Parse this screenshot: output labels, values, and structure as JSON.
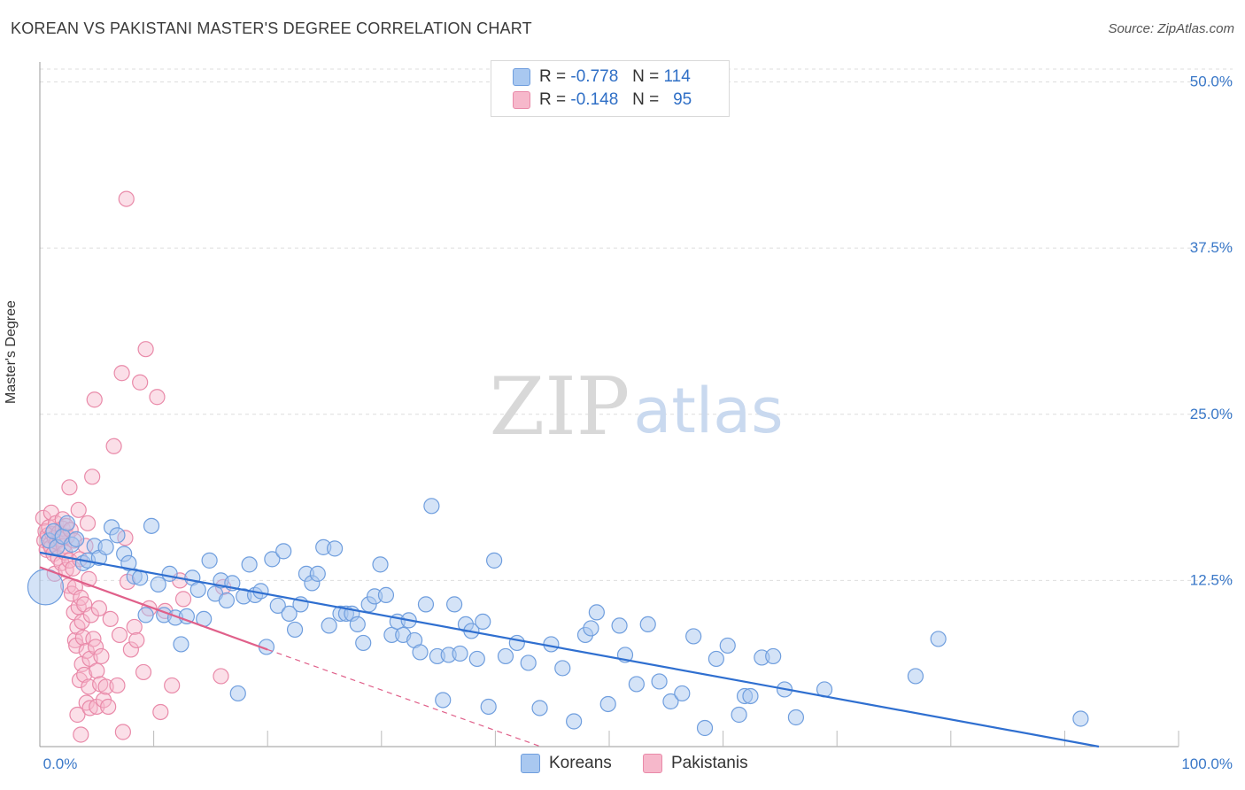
{
  "title": "KOREAN VS PAKISTANI MASTER'S DEGREE CORRELATION CHART",
  "source": "Source: ZipAtlas.com",
  "watermark": {
    "zip": "ZIP",
    "atlas": "atlas"
  },
  "colors": {
    "koreans_fill": "#a9c8f0",
    "koreans_stroke": "#6f9ede",
    "koreans_line": "#2f6fd0",
    "pakistanis_fill": "#f6b8cb",
    "pakistanis_stroke": "#e98aa9",
    "pakistanis_line": "#e0608a",
    "axis_label": "#3a78c8"
  },
  "legend": {
    "rows": [
      {
        "r_label": "R =",
        "r_value": "-0.778",
        "n_label": "N =",
        "n_value": "114"
      },
      {
        "r_label": "R =",
        "r_value": "-0.148",
        "n_label": "N =",
        "n_value": "95"
      }
    ]
  },
  "bottom_legend": {
    "koreans": "Koreans",
    "pakistanis": "Pakistanis"
  },
  "chart_data": {
    "type": "scatter",
    "title": "KOREAN VS PAKISTANI MASTER'S DEGREE CORRELATION CHART",
    "xlabel": "",
    "ylabel": "Master's Degree",
    "xlim": [
      0,
      100
    ],
    "ylim": [
      0,
      51.5
    ],
    "x_tick_labels": [
      "0.0%",
      "100.0%"
    ],
    "y_ticks": [
      12.5,
      25.0,
      37.5,
      50.0
    ],
    "y_tick_labels": [
      "12.5%",
      "25.0%",
      "37.5%",
      "50.0%"
    ],
    "grid": true,
    "legend_position": "top-center",
    "series": [
      {
        "name": "Koreans",
        "R": -0.778,
        "N": 114,
        "trendline": {
          "x": [
            0,
            93
          ],
          "y": [
            14.6,
            0
          ]
        },
        "points": [
          [
            0.5,
            12.0
          ],
          [
            0.8,
            15.5
          ],
          [
            1.2,
            16.2
          ],
          [
            1.5,
            15.0
          ],
          [
            2.0,
            15.8
          ],
          [
            2.4,
            16.8
          ],
          [
            2.8,
            15.2
          ],
          [
            3.2,
            15.6
          ],
          [
            3.8,
            13.8
          ],
          [
            4.2,
            14.0
          ],
          [
            4.8,
            15.1
          ],
          [
            5.2,
            14.2
          ],
          [
            5.8,
            15.0
          ],
          [
            6.3,
            16.5
          ],
          [
            6.8,
            15.9
          ],
          [
            7.4,
            14.5
          ],
          [
            7.8,
            13.8
          ],
          [
            8.3,
            12.8
          ],
          [
            8.8,
            12.7
          ],
          [
            9.3,
            9.9
          ],
          [
            9.8,
            16.6
          ],
          [
            10.4,
            12.2
          ],
          [
            10.9,
            9.9
          ],
          [
            11.4,
            13.0
          ],
          [
            11.9,
            9.7
          ],
          [
            12.4,
            7.7
          ],
          [
            12.9,
            9.8
          ],
          [
            13.4,
            12.7
          ],
          [
            13.9,
            11.8
          ],
          [
            14.4,
            9.6
          ],
          [
            14.9,
            14.0
          ],
          [
            15.4,
            11.5
          ],
          [
            15.9,
            12.5
          ],
          [
            16.4,
            11.0
          ],
          [
            16.9,
            12.3
          ],
          [
            17.4,
            4.0
          ],
          [
            17.9,
            11.3
          ],
          [
            18.4,
            13.7
          ],
          [
            18.9,
            11.4
          ],
          [
            19.4,
            11.7
          ],
          [
            19.9,
            7.5
          ],
          [
            20.4,
            14.1
          ],
          [
            20.9,
            10.6
          ],
          [
            21.4,
            14.7
          ],
          [
            21.9,
            10.0
          ],
          [
            22.4,
            8.8
          ],
          [
            22.9,
            10.7
          ],
          [
            23.4,
            13.0
          ],
          [
            23.9,
            12.3
          ],
          [
            24.4,
            13.0
          ],
          [
            24.9,
            15.0
          ],
          [
            25.4,
            9.1
          ],
          [
            25.9,
            14.9
          ],
          [
            26.4,
            10.0
          ],
          [
            26.9,
            10.0
          ],
          [
            27.4,
            10.0
          ],
          [
            27.9,
            9.2
          ],
          [
            28.4,
            7.8
          ],
          [
            28.9,
            10.7
          ],
          [
            29.4,
            11.3
          ],
          [
            29.9,
            13.7
          ],
          [
            30.4,
            11.4
          ],
          [
            30.9,
            8.4
          ],
          [
            31.4,
            9.4
          ],
          [
            31.9,
            8.4
          ],
          [
            32.4,
            9.5
          ],
          [
            32.9,
            8.0
          ],
          [
            33.4,
            7.1
          ],
          [
            33.9,
            10.7
          ],
          [
            34.4,
            18.1
          ],
          [
            34.9,
            6.8
          ],
          [
            35.4,
            3.5
          ],
          [
            35.9,
            6.9
          ],
          [
            36.4,
            10.7
          ],
          [
            36.9,
            7.0
          ],
          [
            37.4,
            9.2
          ],
          [
            37.9,
            8.7
          ],
          [
            38.4,
            6.6
          ],
          [
            38.9,
            9.4
          ],
          [
            39.4,
            3.0
          ],
          [
            39.9,
            14.0
          ],
          [
            40.9,
            6.8
          ],
          [
            41.9,
            7.8
          ],
          [
            42.9,
            6.3
          ],
          [
            43.9,
            2.9
          ],
          [
            44.9,
            7.7
          ],
          [
            45.9,
            5.9
          ],
          [
            46.9,
            1.9
          ],
          [
            47.9,
            8.4
          ],
          [
            48.4,
            8.9
          ],
          [
            48.9,
            10.1
          ],
          [
            49.9,
            3.2
          ],
          [
            50.9,
            9.1
          ],
          [
            51.4,
            6.9
          ],
          [
            52.4,
            4.7
          ],
          [
            53.4,
            9.2
          ],
          [
            54.4,
            4.9
          ],
          [
            55.4,
            3.4
          ],
          [
            56.4,
            4.0
          ],
          [
            57.4,
            8.3
          ],
          [
            58.4,
            1.4
          ],
          [
            59.4,
            6.6
          ],
          [
            60.4,
            7.6
          ],
          [
            61.4,
            2.4
          ],
          [
            61.9,
            3.8
          ],
          [
            62.4,
            3.8
          ],
          [
            63.4,
            6.7
          ],
          [
            64.4,
            6.8
          ],
          [
            65.4,
            4.3
          ],
          [
            66.4,
            2.2
          ],
          [
            68.9,
            4.3
          ],
          [
            76.9,
            5.3
          ],
          [
            78.9,
            8.1
          ],
          [
            91.4,
            2.1
          ]
        ]
      },
      {
        "name": "Pakistanis",
        "R": -0.148,
        "N": 95,
        "trendline_solid": {
          "x": [
            0,
            20
          ],
          "y": [
            13.5,
            7.3
          ]
        },
        "trendline_dashed": {
          "x": [
            20,
            44
          ],
          "y": [
            7.3,
            0
          ]
        },
        "points": [
          [
            0.3,
            17.2
          ],
          [
            0.4,
            15.5
          ],
          [
            0.5,
            16.2
          ],
          [
            0.6,
            14.8
          ],
          [
            0.7,
            15.9
          ],
          [
            0.8,
            16.5
          ],
          [
            0.9,
            15.2
          ],
          [
            1.0,
            17.6
          ],
          [
            1.0,
            15.0
          ],
          [
            1.1,
            16.0
          ],
          [
            1.2,
            14.5
          ],
          [
            1.3,
            15.7
          ],
          [
            1.3,
            13.0
          ],
          [
            1.4,
            16.8
          ],
          [
            1.5,
            15.4
          ],
          [
            1.6,
            14.2
          ],
          [
            1.7,
            16.1
          ],
          [
            1.8,
            15.6
          ],
          [
            1.9,
            13.8
          ],
          [
            2.0,
            17.1
          ],
          [
            2.0,
            16.4
          ],
          [
            2.1,
            15.1
          ],
          [
            2.2,
            14.6
          ],
          [
            2.3,
            13.3
          ],
          [
            2.3,
            16.6
          ],
          [
            2.4,
            15.8
          ],
          [
            2.5,
            12.1
          ],
          [
            2.6,
            19.5
          ],
          [
            2.6,
            14.0
          ],
          [
            2.7,
            16.3
          ],
          [
            2.8,
            11.5
          ],
          [
            2.9,
            13.4
          ],
          [
            3.0,
            15.5
          ],
          [
            3.0,
            10.1
          ],
          [
            3.1,
            8.0
          ],
          [
            3.1,
            12.0
          ],
          [
            3.2,
            7.6
          ],
          [
            3.3,
            9.0
          ],
          [
            3.3,
            2.4
          ],
          [
            3.4,
            10.5
          ],
          [
            3.4,
            17.8
          ],
          [
            3.5,
            5.0
          ],
          [
            3.5,
            14.1
          ],
          [
            3.6,
            0.9
          ],
          [
            3.6,
            11.2
          ],
          [
            3.7,
            9.4
          ],
          [
            3.7,
            6.2
          ],
          [
            3.8,
            8.2
          ],
          [
            3.9,
            5.4
          ],
          [
            3.9,
            10.7
          ],
          [
            4.0,
            15.1
          ],
          [
            4.1,
            7.2
          ],
          [
            4.1,
            3.3
          ],
          [
            4.2,
            16.8
          ],
          [
            4.3,
            4.5
          ],
          [
            4.3,
            12.6
          ],
          [
            4.4,
            2.9
          ],
          [
            4.4,
            6.6
          ],
          [
            4.5,
            9.9
          ],
          [
            4.6,
            20.3
          ],
          [
            4.7,
            8.1
          ],
          [
            4.8,
            26.1
          ],
          [
            4.9,
            7.5
          ],
          [
            5.0,
            3.0
          ],
          [
            5.0,
            5.7
          ],
          [
            5.2,
            10.4
          ],
          [
            5.3,
            4.7
          ],
          [
            5.4,
            6.8
          ],
          [
            5.6,
            3.5
          ],
          [
            5.8,
            4.5
          ],
          [
            6.0,
            3.0
          ],
          [
            6.2,
            9.6
          ],
          [
            6.5,
            22.6
          ],
          [
            6.8,
            4.6
          ],
          [
            7.0,
            8.4
          ],
          [
            7.2,
            28.1
          ],
          [
            7.3,
            1.1
          ],
          [
            7.5,
            15.7
          ],
          [
            7.6,
            41.2
          ],
          [
            7.7,
            12.4
          ],
          [
            8.0,
            7.3
          ],
          [
            8.3,
            9.0
          ],
          [
            8.5,
            8.0
          ],
          [
            8.8,
            27.4
          ],
          [
            9.1,
            5.6
          ],
          [
            9.3,
            29.9
          ],
          [
            9.6,
            10.4
          ],
          [
            10.3,
            26.3
          ],
          [
            10.6,
            2.6
          ],
          [
            11.0,
            10.2
          ],
          [
            11.6,
            4.6
          ],
          [
            12.3,
            12.5
          ],
          [
            12.6,
            11.1
          ],
          [
            15.9,
            5.3
          ],
          [
            16.1,
            12.0
          ]
        ]
      }
    ]
  }
}
